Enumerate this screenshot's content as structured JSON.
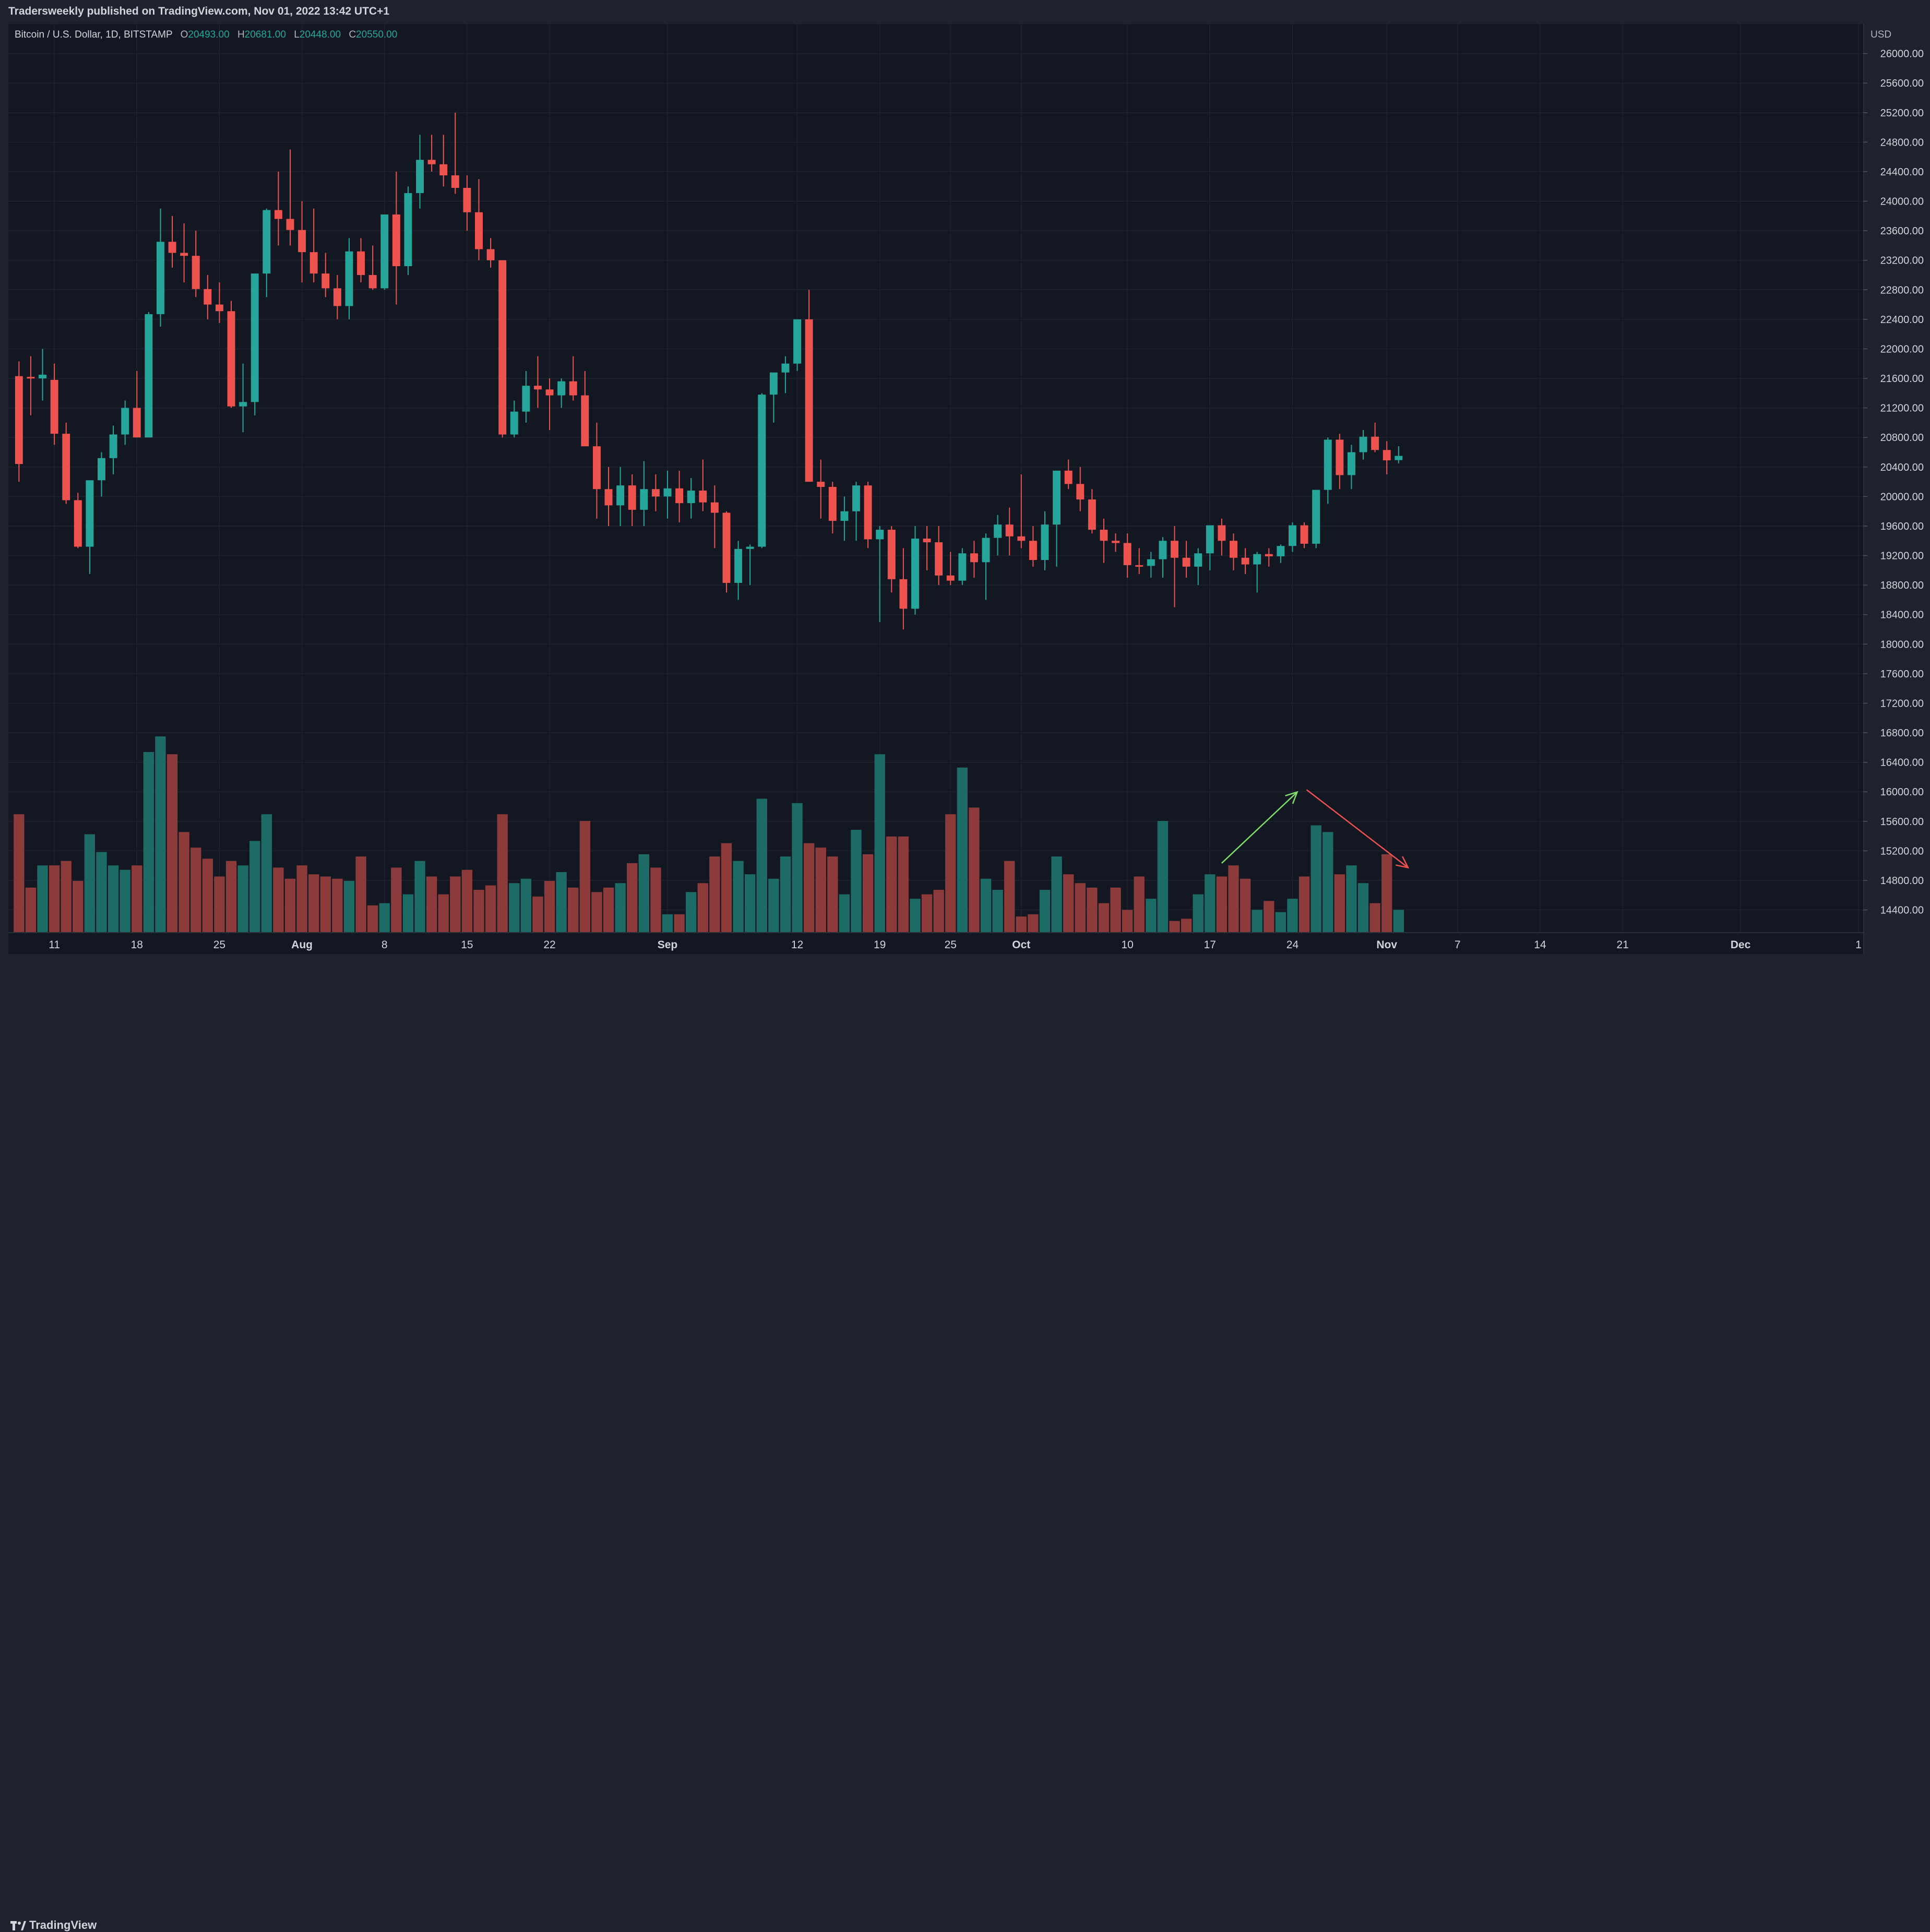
{
  "header": {
    "title": "Tradersweekly published on TradingView.com, Nov 01, 2022 13:42 UTC+1"
  },
  "legend": {
    "symbol": "Bitcoin / U.S. Dollar, 1D, BITSTAMP",
    "open_key": "O",
    "open": "20493.00",
    "high_key": "H",
    "high": "20681.00",
    "low_key": "L",
    "low": "20448.00",
    "close_key": "C",
    "close": "20550.00"
  },
  "footer": {
    "brand": "TradingView"
  },
  "colors": {
    "up": "#26a69a",
    "down": "#ef5350",
    "vol_up": "#1d6b66",
    "vol_down": "#8c3a3a",
    "bg": "#131722",
    "grid": "#1f2330",
    "text": "#d1d4dc"
  },
  "chart_data": {
    "type": "candlestick",
    "currency_label": "USD",
    "ylim": [
      14100,
      26400
    ],
    "y_ticks": [
      "26000.00",
      "25600.00",
      "25200.00",
      "24800.00",
      "24400.00",
      "24000.00",
      "23600.00",
      "23200.00",
      "22800.00",
      "22400.00",
      "22000.00",
      "21600.00",
      "21200.00",
      "20800.00",
      "20400.00",
      "20000.00",
      "19600.00",
      "19200.00",
      "18800.00",
      "18400.00",
      "18000.00",
      "17600.00",
      "17200.00",
      "16800.00",
      "16400.00",
      "16000.00",
      "15600.00",
      "15200.00",
      "14800.00",
      "14400.00"
    ],
    "x_ticks": [
      {
        "label": "11",
        "day": 3
      },
      {
        "label": "18",
        "day": 10
      },
      {
        "label": "25",
        "day": 17
      },
      {
        "label": "Aug",
        "day": 24
      },
      {
        "label": "8",
        "day": 31
      },
      {
        "label": "15",
        "day": 38
      },
      {
        "label": "22",
        "day": 45
      },
      {
        "label": "Sep",
        "day": 55
      },
      {
        "label": "12",
        "day": 66
      },
      {
        "label": "19",
        "day": 73
      },
      {
        "label": "25",
        "day": 79
      },
      {
        "label": "Oct",
        "day": 85
      },
      {
        "label": "10",
        "day": 94
      },
      {
        "label": "17",
        "day": 101
      },
      {
        "label": "24",
        "day": 108
      },
      {
        "label": "Nov",
        "day": 116
      },
      {
        "label": "7",
        "day": 122
      },
      {
        "label": "14",
        "day": 129
      },
      {
        "label": "21",
        "day": 136
      },
      {
        "label": "Dec",
        "day": 146
      },
      {
        "label": "1",
        "day": 156
      }
    ],
    "x_day_range": [
      -0.9,
      156.4
    ],
    "candles": [
      [
        21630,
        21830,
        20200,
        20440
      ],
      [
        21620,
        21900,
        21100,
        21600
      ],
      [
        21600,
        22000,
        21300,
        21650
      ],
      [
        21580,
        21800,
        20700,
        20850
      ],
      [
        20850,
        21000,
        19900,
        19950
      ],
      [
        19950,
        20050,
        19300,
        19320
      ],
      [
        19320,
        20200,
        18950,
        20220
      ],
      [
        20220,
        20600,
        20000,
        20520
      ],
      [
        20520,
        20960,
        20300,
        20840
      ],
      [
        20840,
        21300,
        20700,
        21200
      ],
      [
        21200,
        21700,
        20800,
        20800
      ],
      [
        20800,
        22500,
        20800,
        22470
      ],
      [
        22470,
        23900,
        22300,
        23450
      ],
      [
        23450,
        23800,
        23100,
        23300
      ],
      [
        23300,
        23700,
        22900,
        23260
      ],
      [
        23260,
        23600,
        22700,
        22810
      ],
      [
        22810,
        23000,
        22400,
        22600
      ],
      [
        22600,
        22900,
        22350,
        22510
      ],
      [
        22510,
        22650,
        21200,
        21220
      ],
      [
        21220,
        21800,
        20870,
        21280
      ],
      [
        21280,
        23000,
        21100,
        23020
      ],
      [
        23020,
        23900,
        22700,
        23880
      ],
      [
        23880,
        24400,
        23400,
        23760
      ],
      [
        23760,
        24700,
        23400,
        23610
      ],
      [
        23610,
        24000,
        22900,
        23310
      ],
      [
        23310,
        23900,
        22900,
        23020
      ],
      [
        23020,
        23300,
        22700,
        22820
      ],
      [
        22820,
        23000,
        22400,
        22580
      ],
      [
        22580,
        23500,
        22400,
        23320
      ],
      [
        23320,
        23500,
        22900,
        23000
      ],
      [
        23000,
        23400,
        22800,
        22820
      ],
      [
        22820,
        23800,
        22800,
        23820
      ],
      [
        23820,
        24400,
        22600,
        23120
      ],
      [
        23120,
        24200,
        23000,
        24110
      ],
      [
        24110,
        24900,
        23900,
        24560
      ],
      [
        24560,
        24900,
        24400,
        24500
      ],
      [
        24500,
        24900,
        24200,
        24350
      ],
      [
        24350,
        25200,
        24100,
        24180
      ],
      [
        24180,
        24350,
        23600,
        23850
      ],
      [
        23850,
        24300,
        23200,
        23350
      ],
      [
        23350,
        23500,
        23100,
        23200
      ],
      [
        23200,
        23200,
        20800,
        20840
      ],
      [
        20840,
        21300,
        20800,
        21150
      ],
      [
        21150,
        21700,
        21000,
        21500
      ],
      [
        21500,
        21900,
        21200,
        21450
      ],
      [
        21450,
        21600,
        20900,
        21370
      ],
      [
        21370,
        21600,
        21200,
        21560
      ],
      [
        21560,
        21900,
        21300,
        21370
      ],
      [
        21370,
        21700,
        20700,
        20680
      ],
      [
        20680,
        21000,
        19700,
        20100
      ],
      [
        20100,
        20400,
        19600,
        19880
      ],
      [
        19880,
        20400,
        19600,
        20150
      ],
      [
        20150,
        20300,
        19600,
        19820
      ],
      [
        19820,
        20480,
        19600,
        20100
      ],
      [
        20100,
        20300,
        19800,
        20000
      ],
      [
        20000,
        20350,
        19700,
        20110
      ],
      [
        20110,
        20350,
        19650,
        19910
      ],
      [
        19910,
        20250,
        19700,
        20080
      ],
      [
        20080,
        20500,
        19800,
        19920
      ],
      [
        19920,
        20150,
        19300,
        19780
      ],
      [
        19780,
        19800,
        18700,
        18830
      ],
      [
        18830,
        19400,
        18600,
        19290
      ],
      [
        19290,
        19350,
        18800,
        19320
      ],
      [
        19320,
        21400,
        19300,
        21380
      ],
      [
        21380,
        21650,
        21000,
        21680
      ],
      [
        21680,
        21900,
        21400,
        21800
      ],
      [
        21800,
        22400,
        21700,
        22400
      ],
      [
        22400,
        22800,
        20200,
        20200
      ],
      [
        20200,
        20500,
        19700,
        20130
      ],
      [
        20130,
        20200,
        19500,
        19670
      ],
      [
        19670,
        20000,
        19400,
        19800
      ],
      [
        19800,
        20200,
        19400,
        20150
      ],
      [
        20150,
        20200,
        19300,
        19420
      ],
      [
        19420,
        19600,
        18300,
        19550
      ],
      [
        19550,
        19600,
        18700,
        18880
      ],
      [
        18880,
        19300,
        18200,
        18480
      ],
      [
        18480,
        19600,
        18400,
        19430
      ],
      [
        19430,
        19600,
        19000,
        19380
      ],
      [
        19380,
        19600,
        18800,
        18930
      ],
      [
        18930,
        19250,
        18800,
        18860
      ],
      [
        18860,
        19300,
        18800,
        19230
      ],
      [
        19230,
        19400,
        18900,
        19110
      ],
      [
        19110,
        19500,
        18600,
        19440
      ],
      [
        19440,
        19750,
        19200,
        19620
      ],
      [
        19620,
        19850,
        19200,
        19460
      ],
      [
        19460,
        20300,
        19300,
        19400
      ],
      [
        19400,
        19600,
        19050,
        19140
      ],
      [
        19140,
        19800,
        19000,
        19620
      ],
      [
        19620,
        20300,
        19050,
        20350
      ],
      [
        20350,
        20500,
        20100,
        20170
      ],
      [
        20170,
        20400,
        19800,
        19960
      ],
      [
        19960,
        20100,
        19500,
        19550
      ],
      [
        19550,
        19700,
        19100,
        19400
      ],
      [
        19400,
        19500,
        19250,
        19370
      ],
      [
        19370,
        19500,
        18900,
        19070
      ],
      [
        19070,
        19300,
        18950,
        19060
      ],
      [
        19060,
        19250,
        18900,
        19150
      ],
      [
        19150,
        19450,
        18900,
        19400
      ],
      [
        19400,
        19600,
        18500,
        19170
      ],
      [
        19170,
        19400,
        18900,
        19050
      ],
      [
        19050,
        19300,
        18800,
        19230
      ],
      [
        19230,
        19600,
        19000,
        19610
      ],
      [
        19610,
        19700,
        19200,
        19400
      ],
      [
        19400,
        19500,
        19000,
        19170
      ],
      [
        19170,
        19300,
        18950,
        19080
      ],
      [
        19080,
        19250,
        18700,
        19220
      ],
      [
        19220,
        19300,
        19050,
        19190
      ],
      [
        19190,
        19350,
        19100,
        19330
      ],
      [
        19330,
        19650,
        19250,
        19610
      ],
      [
        19610,
        19650,
        19300,
        19360
      ],
      [
        19360,
        20000,
        19300,
        20090
      ],
      [
        20090,
        20800,
        19900,
        20770
      ],
      [
        20770,
        20850,
        20100,
        20290
      ],
      [
        20290,
        20700,
        20100,
        20600
      ],
      [
        20600,
        20900,
        20500,
        20810
      ],
      [
        20810,
        21000,
        20600,
        20630
      ],
      [
        20630,
        20750,
        20300,
        20490
      ],
      [
        20493,
        20681,
        20448,
        20550
      ]
    ],
    "volume_scale_max": 10,
    "volume": [
      5.3,
      2.0,
      3.0,
      3.0,
      3.2,
      2.3,
      4.4,
      3.6,
      3.0,
      2.8,
      3.0,
      8.1,
      8.8,
      8.0,
      4.5,
      3.8,
      3.3,
      2.5,
      3.2,
      3.0,
      4.1,
      5.3,
      2.9,
      2.4,
      3.0,
      2.6,
      2.5,
      2.4,
      2.3,
      3.4,
      1.2,
      1.3,
      2.9,
      1.7,
      3.2,
      2.5,
      1.7,
      2.5,
      2.8,
      1.9,
      2.1,
      5.3,
      2.2,
      2.4,
      1.6,
      2.3,
      2.7,
      2.0,
      5.0,
      1.8,
      2.0,
      2.2,
      3.1,
      3.5,
      2.9,
      0.8,
      0.8,
      1.8,
      2.2,
      3.4,
      4.0,
      3.2,
      2.6,
      6.0,
      2.4,
      3.4,
      5.8,
      4.0,
      3.8,
      3.4,
      1.7,
      4.6,
      3.5,
      8.0,
      4.3,
      4.3,
      1.5,
      1.7,
      1.9,
      5.3,
      7.4,
      5.6,
      2.4,
      1.9,
      3.2,
      0.7,
      0.8,
      1.9,
      3.4,
      2.6,
      2.2,
      2.0,
      1.3,
      2.0,
      1.0,
      2.5,
      1.5,
      5.0,
      0.5,
      0.6,
      1.7,
      2.6,
      2.5,
      3.0,
      2.4,
      1.0,
      1.4,
      0.9,
      1.5,
      2.5,
      4.8,
      4.5,
      2.6,
      3.0,
      2.2,
      1.3,
      3.5,
      1.0
    ],
    "arrows": [
      {
        "from": [
          102,
          3.1
        ],
        "to": [
          108.4,
          6.3
        ],
        "color": "#7ee06a"
      },
      {
        "from": [
          109.2,
          6.4
        ],
        "to": [
          117.8,
          2.9
        ],
        "color": "#ef5350"
      }
    ]
  }
}
